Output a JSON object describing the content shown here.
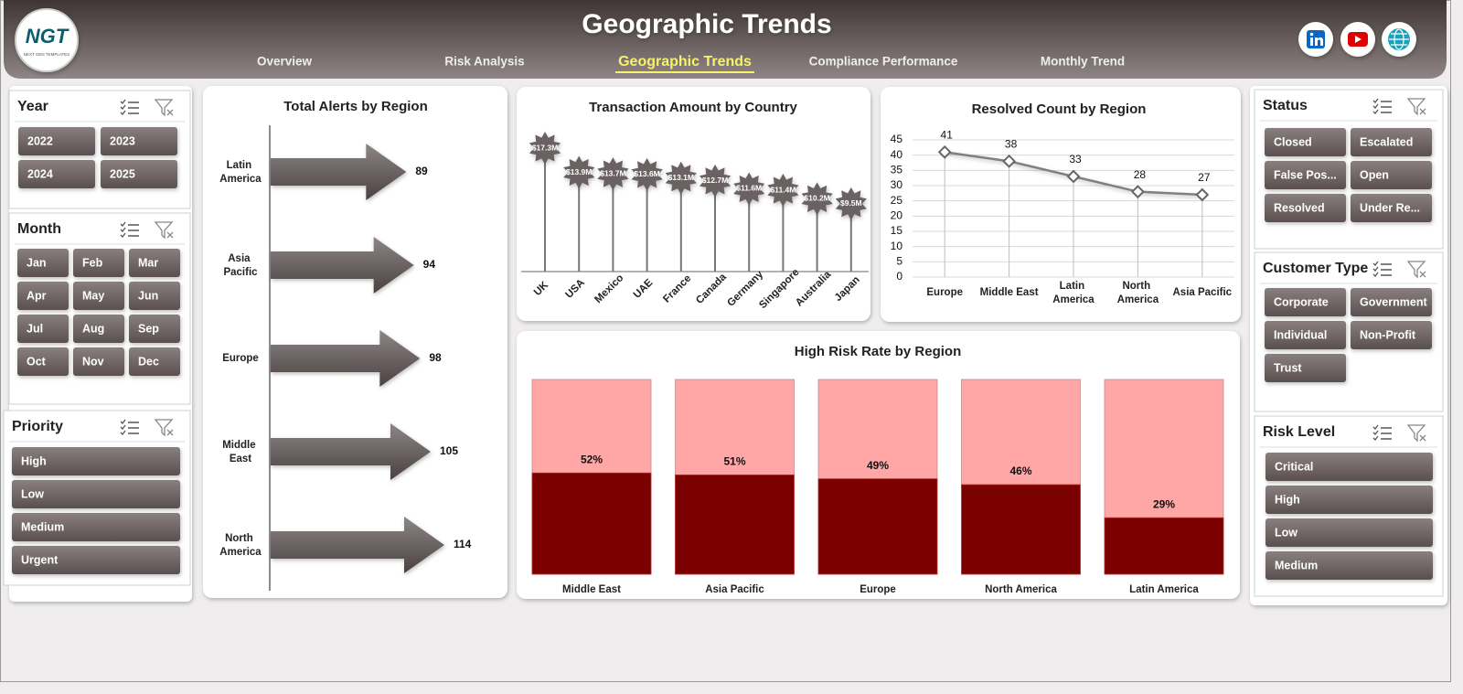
{
  "header": {
    "logo": "NGT",
    "logo_tagline": "NEXT GEN TEMPLATES",
    "title": "Geographic Trends",
    "nav": [
      "Overview",
      "Risk Analysis",
      "Geographic Trends",
      "Compliance Performance",
      "Monthly Trend"
    ],
    "active_nav": 2
  },
  "slicers": [
    {
      "title": "Year",
      "items": [
        "2022",
        "2023",
        "2024",
        "2025"
      ]
    },
    {
      "title": "Month",
      "items": [
        "Jan",
        "Feb",
        "Mar",
        "Apr",
        "May",
        "Jun",
        "Jul",
        "Aug",
        "Sep",
        "Oct",
        "Nov",
        "Dec"
      ]
    },
    {
      "title": "Priority",
      "items": [
        "High",
        "Low",
        "Medium",
        "Urgent"
      ]
    },
    {
      "title": "Status",
      "items": [
        "Closed",
        "Escalated",
        "False Pos...",
        "Open",
        "Resolved",
        "Under Re..."
      ]
    },
    {
      "title": "Customer Type",
      "items": [
        "Corporate",
        "Government",
        "Individual",
        "Non-Profit",
        "Trust"
      ]
    },
    {
      "title": "Risk Level",
      "items": [
        "Critical",
        "High",
        "Low",
        "Medium"
      ]
    }
  ],
  "chart_data": [
    {
      "type": "arrow-bar",
      "title": "Total Alerts by Region",
      "orientation": "horizontal",
      "categories": [
        "Latin America",
        "Asia Pacific",
        "Europe",
        "Middle East",
        "North America"
      ],
      "values": [
        89,
        94,
        98,
        105,
        114
      ],
      "color": "#5e5555"
    },
    {
      "type": "lollipop",
      "title": "Transaction Amount by Country",
      "categories": [
        "UK",
        "USA",
        "Mexico",
        "UAE",
        "France",
        "Canada",
        "Germany",
        "Singapore",
        "Australia",
        "Japan"
      ],
      "values": [
        17.3,
        13.9,
        13.7,
        13.6,
        13.1,
        12.7,
        11.6,
        11.4,
        10.2,
        9.5
      ],
      "value_labels": [
        "$17.3M",
        "$13.9M",
        "$13.7M",
        "$13.6M",
        "$13.1M",
        "$12.7M",
        "$11.6M",
        "$11.4M",
        "$10.2M",
        "$9.5M"
      ],
      "color": "#6b6262"
    },
    {
      "type": "line",
      "title": "Resolved Count by Region",
      "categories": [
        "Europe",
        "Middle East",
        "Latin America",
        "North America",
        "Asia Pacific"
      ],
      "values": [
        41,
        38,
        33,
        28,
        27
      ],
      "color": "#808080",
      "ylim": [
        0,
        45
      ],
      "yticks": [
        0,
        5,
        10,
        15,
        20,
        25,
        30,
        35,
        40,
        45
      ],
      "grid": true
    },
    {
      "type": "bar",
      "title": "High Risk Rate by Region",
      "categories": [
        "Middle East",
        "Asia Pacific",
        "Europe",
        "North America",
        "Latin America"
      ],
      "values": [
        52,
        51,
        49,
        46,
        29
      ],
      "value_labels": [
        "52%",
        "51%",
        "49%",
        "46%",
        "29%"
      ],
      "color": "#7b0000",
      "track_color": "#ffa6a6",
      "ylim": [
        0,
        100
      ]
    }
  ]
}
